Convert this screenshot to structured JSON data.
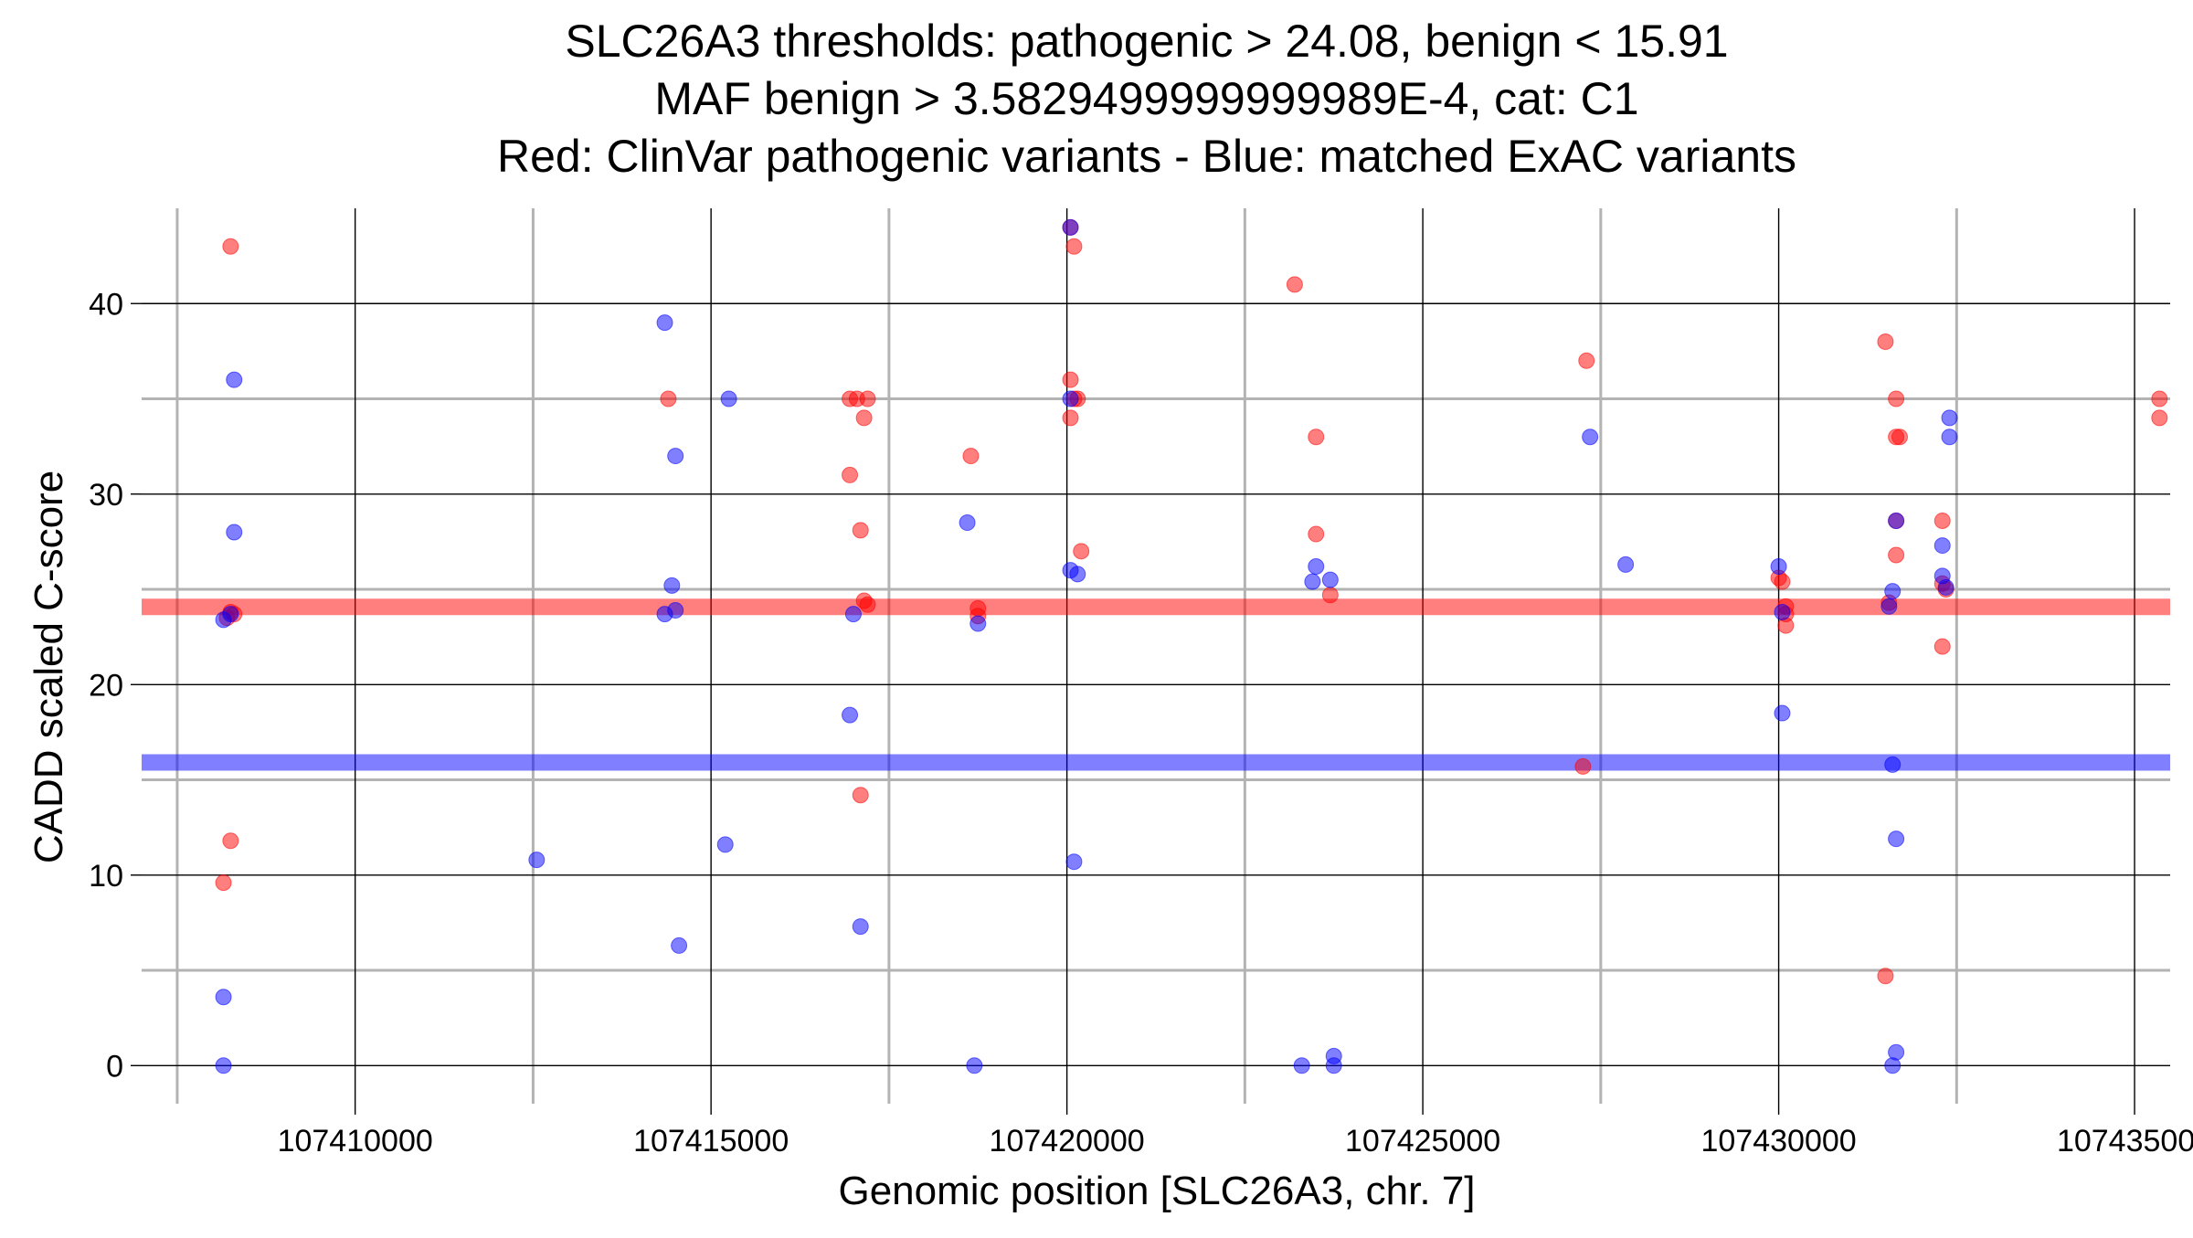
{
  "chart_data": {
    "type": "scatter",
    "title_lines": [
      "SLC26A3 thresholds: pathogenic > 24.08, benign < 15.91",
      "MAF benign > 3.5829499999999989E-4, cat: C1",
      "Red: ClinVar pathogenic variants - Blue: matched ExAC variants"
    ],
    "xlabel": "Genomic position [SLC26A3, chr. 7]",
    "ylabel": "CADD scaled C-score",
    "xlim": [
      107407000,
      107435500
    ],
    "ylim": [
      -2,
      45
    ],
    "x_ticks": [
      107410000,
      107415000,
      107420000,
      107425000,
      107430000,
      107435000
    ],
    "x_tick_labels": [
      "107410000",
      "107415000",
      "107420000",
      "107425000",
      "107430000",
      "107435000"
    ],
    "y_ticks": [
      0,
      10,
      20,
      30,
      40
    ],
    "y_tick_labels": [
      "0",
      "10",
      "20",
      "30",
      "40"
    ],
    "x_minor_grid": [
      107407500,
      107412500,
      107417500,
      107422500,
      107427500,
      107432500
    ],
    "y_minor_grid": [
      5,
      15,
      25,
      35
    ],
    "grid": true,
    "thresholds": {
      "pathogenic": 24.08,
      "benign": 15.91,
      "pathogenic_color": "#ff0000",
      "benign_color": "#0000ff"
    },
    "series": [
      {
        "color": "#ff0000",
        "points": [
          [
            107408250,
            43
          ],
          [
            107408200,
            23.5
          ],
          [
            107408250,
            23.8
          ],
          [
            107408300,
            23.7
          ],
          [
            107408250,
            11.8
          ],
          [
            107408150,
            9.6
          ],
          [
            107414400,
            35
          ],
          [
            107416950,
            35
          ],
          [
            107417050,
            35
          ],
          [
            107417200,
            35
          ],
          [
            107417150,
            34
          ],
          [
            107416950,
            31
          ],
          [
            107417100,
            28.1
          ],
          [
            107417150,
            24.4
          ],
          [
            107417200,
            24.2
          ],
          [
            107417100,
            14.2
          ],
          [
            107418650,
            32
          ],
          [
            107418750,
            24
          ],
          [
            107418750,
            23.6
          ],
          [
            107420050,
            44
          ],
          [
            107420100,
            43
          ],
          [
            107420050,
            36
          ],
          [
            107420100,
            35
          ],
          [
            107420150,
            35
          ],
          [
            107420050,
            34
          ],
          [
            107420200,
            27
          ],
          [
            107423200,
            41
          ],
          [
            107423500,
            33
          ],
          [
            107423500,
            27.9
          ],
          [
            107423700,
            24.7
          ],
          [
            107427300,
            37
          ],
          [
            107427250,
            15.7
          ],
          [
            107430000,
            25.6
          ],
          [
            107430050,
            25.4
          ],
          [
            107430100,
            24.1
          ],
          [
            107430100,
            23.7
          ],
          [
            107430100,
            23.1
          ],
          [
            107431500,
            38
          ],
          [
            107431650,
            35
          ],
          [
            107431650,
            33
          ],
          [
            107431700,
            33
          ],
          [
            107431650,
            28.6
          ],
          [
            107431650,
            26.8
          ],
          [
            107432300,
            28.6
          ],
          [
            107432300,
            25.3
          ],
          [
            107432350,
            25
          ],
          [
            107432300,
            22
          ],
          [
            107431550,
            24.3
          ],
          [
            107431500,
            4.7
          ],
          [
            107435350,
            35
          ],
          [
            107435350,
            34
          ]
        ]
      },
      {
        "color": "#0000ff",
        "points": [
          [
            107408300,
            36
          ],
          [
            107408300,
            28
          ],
          [
            107408150,
            23.4
          ],
          [
            107408250,
            23.7
          ],
          [
            107408150,
            3.6
          ],
          [
            107408150,
            0
          ],
          [
            107412550,
            10.8
          ],
          [
            107414350,
            39
          ],
          [
            107414500,
            32
          ],
          [
            107414450,
            25.2
          ],
          [
            107414350,
            23.7
          ],
          [
            107414500,
            23.9
          ],
          [
            107414550,
            6.3
          ],
          [
            107415250,
            35
          ],
          [
            107415200,
            11.6
          ],
          [
            107416950,
            18.4
          ],
          [
            107417000,
            23.7
          ],
          [
            107417100,
            7.3
          ],
          [
            107418600,
            28.5
          ],
          [
            107418750,
            23.2
          ],
          [
            107418700,
            0
          ],
          [
            107420050,
            44
          ],
          [
            107420050,
            35
          ],
          [
            107420050,
            26
          ],
          [
            107420150,
            25.8
          ],
          [
            107420100,
            10.7
          ],
          [
            107423500,
            26.2
          ],
          [
            107423450,
            25.4
          ],
          [
            107423700,
            25.5
          ],
          [
            107423300,
            0
          ],
          [
            107423750,
            0.5
          ],
          [
            107423750,
            0
          ],
          [
            107427350,
            33
          ],
          [
            107427850,
            26.3
          ],
          [
            107430000,
            26.2
          ],
          [
            107430050,
            23.8
          ],
          [
            107430050,
            18.5
          ],
          [
            107431550,
            24.1
          ],
          [
            107431600,
            24.9
          ],
          [
            107431600,
            15.8
          ],
          [
            107431650,
            11.9
          ],
          [
            107431650,
            28.6
          ],
          [
            107431650,
            0.7
          ],
          [
            107431600,
            0
          ],
          [
            107432300,
            27.3
          ],
          [
            107432300,
            25.7
          ],
          [
            107432350,
            25.1
          ],
          [
            107432400,
            34
          ],
          [
            107432400,
            33
          ]
        ]
      }
    ]
  }
}
